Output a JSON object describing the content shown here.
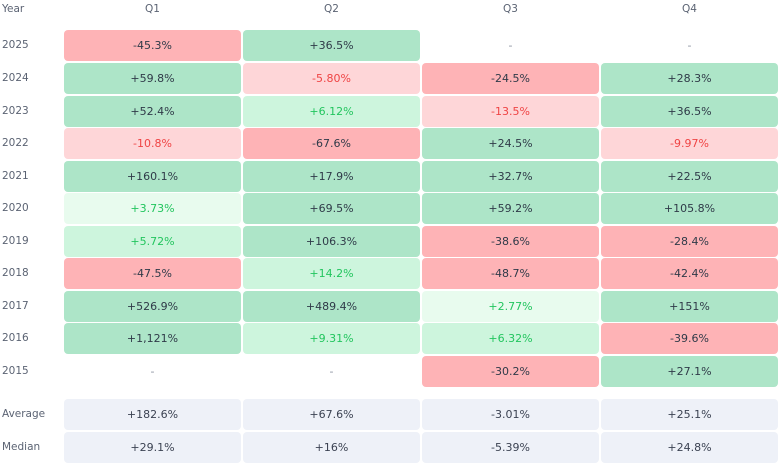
{
  "header": {
    "year_label": "Year",
    "quarters": [
      "Q1",
      "Q2",
      "Q3",
      "Q4"
    ]
  },
  "rows": [
    {
      "year": "2025",
      "cells": [
        {
          "v": "-45.3%",
          "k": "neg-strong"
        },
        {
          "v": "+36.5%",
          "k": "pos-strong"
        },
        {
          "v": "-",
          "k": "empty"
        },
        {
          "v": "-",
          "k": "empty"
        }
      ]
    },
    {
      "year": "2024",
      "cells": [
        {
          "v": "+59.8%",
          "k": "pos-strong"
        },
        {
          "v": "-5.80%",
          "k": "neg-light"
        },
        {
          "v": "-24.5%",
          "k": "neg-strong"
        },
        {
          "v": "+28.3%",
          "k": "pos-strong"
        }
      ]
    },
    {
      "year": "2023",
      "cells": [
        {
          "v": "+52.4%",
          "k": "pos-strong"
        },
        {
          "v": "+6.12%",
          "k": "pos-light"
        },
        {
          "v": "-13.5%",
          "k": "neg-light"
        },
        {
          "v": "+36.5%",
          "k": "pos-strong"
        }
      ]
    },
    {
      "year": "2022",
      "cells": [
        {
          "v": "-10.8%",
          "k": "neg-light"
        },
        {
          "v": "-67.6%",
          "k": "neg-strong"
        },
        {
          "v": "+24.5%",
          "k": "pos-strong"
        },
        {
          "v": "-9.97%",
          "k": "neg-light"
        }
      ]
    },
    {
      "year": "2021",
      "cells": [
        {
          "v": "+160.1%",
          "k": "pos-strong"
        },
        {
          "v": "+17.9%",
          "k": "pos-strong"
        },
        {
          "v": "+32.7%",
          "k": "pos-strong"
        },
        {
          "v": "+22.5%",
          "k": "pos-strong"
        }
      ]
    },
    {
      "year": "2020",
      "cells": [
        {
          "v": "+3.73%",
          "k": "pos-pale"
        },
        {
          "v": "+69.5%",
          "k": "pos-strong"
        },
        {
          "v": "+59.2%",
          "k": "pos-strong"
        },
        {
          "v": "+105.8%",
          "k": "pos-strong"
        }
      ]
    },
    {
      "year": "2019",
      "cells": [
        {
          "v": "+5.72%",
          "k": "pos-light"
        },
        {
          "v": "+106.3%",
          "k": "pos-strong"
        },
        {
          "v": "-38.6%",
          "k": "neg-strong"
        },
        {
          "v": "-28.4%",
          "k": "neg-strong"
        }
      ]
    },
    {
      "year": "2018",
      "cells": [
        {
          "v": "-47.5%",
          "k": "neg-strong"
        },
        {
          "v": "+14.2%",
          "k": "pos-light"
        },
        {
          "v": "-48.7%",
          "k": "neg-strong"
        },
        {
          "v": "-42.4%",
          "k": "neg-strong"
        }
      ]
    },
    {
      "year": "2017",
      "cells": [
        {
          "v": "+526.9%",
          "k": "pos-strong"
        },
        {
          "v": "+489.4%",
          "k": "pos-strong"
        },
        {
          "v": "+2.77%",
          "k": "pos-pale"
        },
        {
          "v": "+151%",
          "k": "pos-strong"
        }
      ]
    },
    {
      "year": "2016",
      "cells": [
        {
          "v": "+1,121%",
          "k": "pos-strong"
        },
        {
          "v": "+9.31%",
          "k": "pos-light"
        },
        {
          "v": "+6.32%",
          "k": "pos-light"
        },
        {
          "v": "-39.6%",
          "k": "neg-strong"
        }
      ]
    },
    {
      "year": "2015",
      "cells": [
        {
          "v": "-",
          "k": "empty"
        },
        {
          "v": "-",
          "k": "empty"
        },
        {
          "v": "-30.2%",
          "k": "neg-strong"
        },
        {
          "v": "+27.1%",
          "k": "pos-strong"
        }
      ]
    }
  ],
  "summary": [
    {
      "label": "Average",
      "cells": [
        "+182.6%",
        "+67.6%",
        "-3.01%",
        "+25.1%"
      ]
    },
    {
      "label": "Median",
      "cells": [
        "+29.1%",
        "+16%",
        "-5.39%",
        "+24.8%"
      ]
    }
  ],
  "colors": {
    "positive_strong": "#ade5c8",
    "positive_light": "#cdf5dd",
    "negative_strong": "#feb3b6",
    "negative_light": "#fed6d8",
    "summary_bg": "#eef1f8",
    "positive_text": "#22c55e",
    "negative_text": "#ef4444"
  }
}
